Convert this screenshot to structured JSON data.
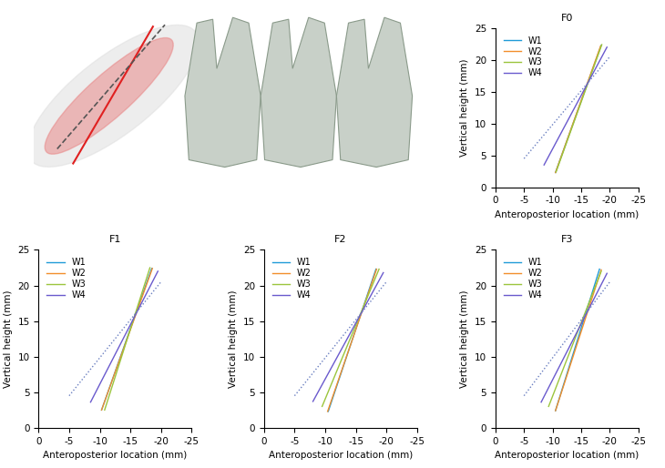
{
  "chart_data": [
    {
      "type": "line",
      "title": "F0",
      "xlabel": "Anteroposterior location (mm)",
      "ylabel": "Vertical height (mm)",
      "xlim": [
        0,
        -25
      ],
      "ylim": [
        0,
        25
      ],
      "xticks": [
        0,
        -5,
        -10,
        -15,
        -20,
        -25
      ],
      "yticks": [
        0,
        5,
        10,
        15,
        20,
        25
      ],
      "legend": "upper left",
      "series": [
        {
          "name": "W1",
          "color": "#1f9bd7",
          "x": [
            -10.5,
            -18.5
          ],
          "values": [
            2.3,
            22.3
          ]
        },
        {
          "name": "W2",
          "color": "#f28e2b",
          "x": [
            -10.5,
            -18.4
          ],
          "values": [
            2.3,
            22.2
          ]
        },
        {
          "name": "W3",
          "color": "#9bc53d",
          "x": [
            -10.6,
            -18.6
          ],
          "values": [
            2.4,
            22.4
          ]
        },
        {
          "name": "W4",
          "color": "#6a5acd",
          "x": [
            -8.5,
            -19.5
          ],
          "values": [
            3.5,
            22.0
          ]
        },
        {
          "color": "#6a7fc0",
          "line_style": "dotted",
          "x": [
            -5.0,
            -20.0
          ],
          "values": [
            4.5,
            20.5
          ]
        }
      ]
    },
    {
      "type": "line",
      "title": "F1",
      "xlabel": "Anteroposterior location (mm)",
      "ylabel": "Vertical height (mm)",
      "xlim": [
        0,
        -25
      ],
      "ylim": [
        0,
        25
      ],
      "xticks": [
        0,
        -5,
        -10,
        -15,
        -20,
        -25
      ],
      "yticks": [
        0,
        5,
        10,
        15,
        20,
        25
      ],
      "legend": "upper left",
      "series": [
        {
          "name": "W1",
          "color": "#1f9bd7",
          "x": [
            -10.3,
            -18.5
          ],
          "values": [
            2.5,
            22.4
          ]
        },
        {
          "name": "W2",
          "color": "#f28e2b",
          "x": [
            -10.3,
            -18.6
          ],
          "values": [
            2.5,
            22.4
          ]
        },
        {
          "name": "W3",
          "color": "#9bc53d",
          "x": [
            -10.8,
            -18.2
          ],
          "values": [
            2.5,
            22.5
          ]
        },
        {
          "name": "W4",
          "color": "#6a5acd",
          "x": [
            -8.5,
            -19.5
          ],
          "values": [
            3.6,
            22.0
          ]
        },
        {
          "color": "#6a7fc0",
          "line_style": "dotted",
          "x": [
            -5.0,
            -20.0
          ],
          "values": [
            4.5,
            20.5
          ]
        }
      ]
    },
    {
      "type": "line",
      "title": "F2",
      "xlabel": "Anteroposterior location (mm)",
      "ylabel": "Vertical height (mm)",
      "xlim": [
        0,
        -25
      ],
      "ylim": [
        0,
        25
      ],
      "xticks": [
        0,
        -5,
        -10,
        -15,
        -20,
        -25
      ],
      "yticks": [
        0,
        5,
        10,
        15,
        20,
        25
      ],
      "legend": "upper left",
      "series": [
        {
          "name": "W1",
          "color": "#1f9bd7",
          "x": [
            -10.5,
            -18.3
          ],
          "values": [
            2.3,
            22.3
          ]
        },
        {
          "name": "W2",
          "color": "#f28e2b",
          "x": [
            -10.4,
            -18.4
          ],
          "values": [
            2.3,
            22.3
          ]
        },
        {
          "name": "W3",
          "color": "#9bc53d",
          "x": [
            -9.5,
            -18.8
          ],
          "values": [
            3.0,
            22.3
          ]
        },
        {
          "name": "W4",
          "color": "#6a5acd",
          "x": [
            -8.0,
            -19.5
          ],
          "values": [
            3.7,
            21.8
          ]
        },
        {
          "color": "#6a7fc0",
          "line_style": "dotted",
          "x": [
            -5.0,
            -20.0
          ],
          "values": [
            4.5,
            20.5
          ]
        }
      ]
    },
    {
      "type": "line",
      "title": "F3",
      "xlabel": "Anteroposterior location (mm)",
      "ylabel": "Vertical height (mm)",
      "xlim": [
        0,
        -25
      ],
      "ylim": [
        0,
        25
      ],
      "xticks": [
        0,
        -5,
        -10,
        -15,
        -20,
        -25
      ],
      "yticks": [
        0,
        5,
        10,
        15,
        20,
        25
      ],
      "legend": "upper left",
      "series": [
        {
          "name": "W1",
          "color": "#1f9bd7",
          "x": [
            -10.5,
            -18.2
          ],
          "values": [
            2.4,
            22.3
          ]
        },
        {
          "name": "W2",
          "color": "#f28e2b",
          "x": [
            -10.5,
            -18.5
          ],
          "values": [
            2.4,
            22.2
          ]
        },
        {
          "name": "W3",
          "color": "#9bc53d",
          "x": [
            -9.3,
            -18.5
          ],
          "values": [
            3.0,
            22.0
          ]
        },
        {
          "name": "W4",
          "color": "#6a5acd",
          "x": [
            -8.0,
            -19.5
          ],
          "values": [
            3.6,
            21.7
          ]
        },
        {
          "color": "#6a7fc0",
          "line_style": "dotted",
          "x": [
            -5.0,
            -20.0
          ],
          "values": [
            4.5,
            20.5
          ]
        }
      ]
    }
  ]
}
